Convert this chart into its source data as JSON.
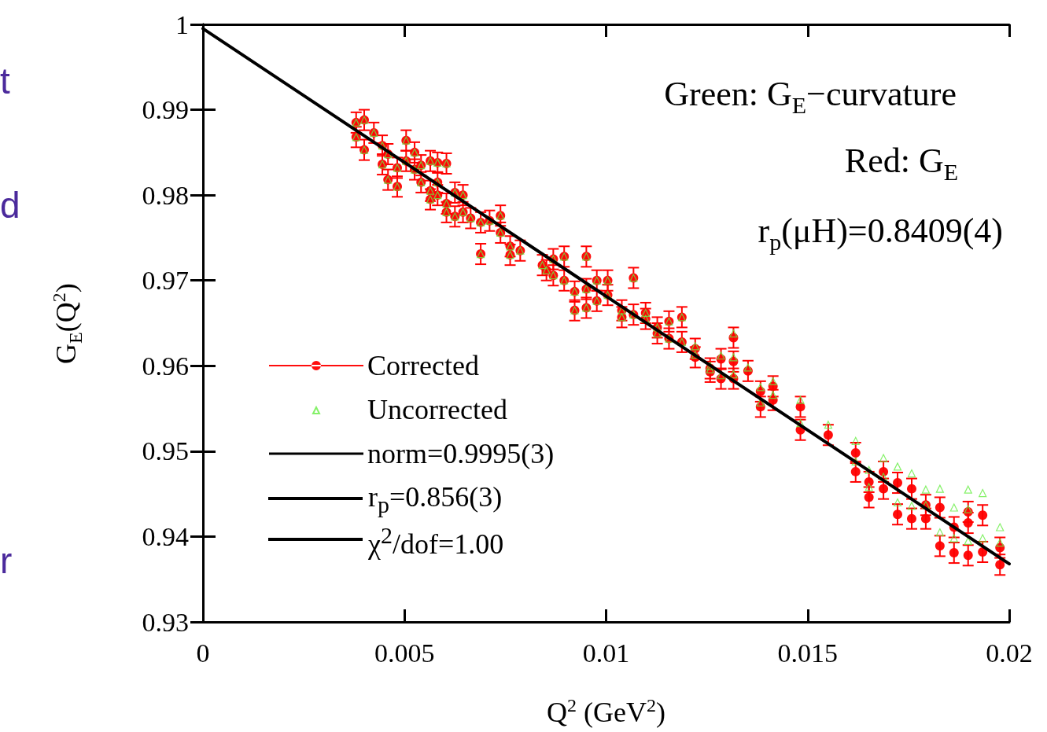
{
  "chart_data": {
    "type": "scatter",
    "xlabel": "Q$^{2}$ (GeV$^{2}$)",
    "ylabel": "G$_{E}$(Q$^{2}$)",
    "annotations": [
      "Green: G$_{E}$−curvature",
      "Red: G$_{E}$",
      "r$_{p}$(μH)=0.8409(4)",
      "t",
      "d",
      "r",
      "r$_{p}$=0.856(3)",
      "χ$^{2}$/dof=1.00"
    ],
    "xlim": [
      0,
      0.02
    ],
    "xticks": [
      0,
      0.005,
      0.01,
      0.015,
      0.02
    ],
    "ylim": [
      0.93,
      1
    ],
    "yticks": [
      0.93,
      0.94,
      0.95,
      0.96,
      0.97,
      0.98,
      0.99,
      1
    ],
    "grid": false,
    "legend": "bottom left",
    "x": [
      0.0038,
      0.0038,
      0.004,
      0.004,
      0.00424,
      0.00445,
      0.00445,
      0.00459,
      0.00459,
      0.00482,
      0.00482,
      0.00504,
      0.00504,
      0.00525,
      0.00525,
      0.00541,
      0.00541,
      0.00564,
      0.00564,
      0.00564,
      0.00582,
      0.00582,
      0.00582,
      0.00604,
      0.00604,
      0.00604,
      0.00625,
      0.00625,
      0.00645,
      0.00645,
      0.00664,
      0.00689,
      0.00689,
      0.00711,
      0.00738,
      0.00738,
      0.00762,
      0.00762,
      0.00787,
      0.00842,
      0.00852,
      0.00869,
      0.00869,
      0.00896,
      0.00896,
      0.00922,
      0.00922,
      0.00951,
      0.00951,
      0.00951,
      0.00977,
      0.00977,
      0.01004,
      0.01004,
      0.01039,
      0.01039,
      0.01068,
      0.01068,
      0.01098,
      0.01098,
      0.01127,
      0.01127,
      0.01156,
      0.01156,
      0.01188,
      0.01188,
      0.01221,
      0.01221,
      0.01258,
      0.01258,
      0.01285,
      0.01285,
      0.01316,
      0.01316,
      0.01316,
      0.01352,
      0.01383,
      0.01383,
      0.01414,
      0.01414,
      0.01482,
      0.01482,
      0.01551,
      0.01619,
      0.01619,
      0.01652,
      0.01652,
      0.01688,
      0.01688,
      0.01723,
      0.01723,
      0.01758,
      0.01758,
      0.01793,
      0.01793,
      0.01828,
      0.01828,
      0.01863,
      0.01863,
      0.01898,
      0.01898,
      0.01898,
      0.01934,
      0.01934,
      0.01977,
      0.01977
    ],
    "series": [
      {
        "name": "Corrected",
        "marker": "circle",
        "color": "#ff0000",
        "values": [
          0.9885,
          0.9868,
          0.9888,
          0.9853,
          0.9873,
          0.9858,
          0.9836,
          0.9818,
          0.9848,
          0.981,
          0.9832,
          0.9864,
          0.984,
          0.985,
          0.983,
          0.9835,
          0.9815,
          0.984,
          0.9795,
          0.9805,
          0.9838,
          0.9815,
          0.98,
          0.9837,
          0.978,
          0.979,
          0.9775,
          0.9803,
          0.98,
          0.978,
          0.9773,
          0.9731,
          0.9768,
          0.977,
          0.9776,
          0.9756,
          0.973,
          0.974,
          0.9735,
          0.9718,
          0.9712,
          0.9706,
          0.9725,
          0.97,
          0.9728,
          0.9665,
          0.9687,
          0.9728,
          0.969,
          0.9668,
          0.97,
          0.9676,
          0.97,
          0.9683,
          0.9657,
          0.9665,
          0.9703,
          0.966,
          0.9655,
          0.9662,
          0.9645,
          0.9638,
          0.9652,
          0.9632,
          0.9657,
          0.9628,
          0.961,
          0.962,
          0.9597,
          0.9593,
          0.9608,
          0.9585,
          0.9633,
          0.9605,
          0.9585,
          0.9594,
          0.957,
          0.9552,
          0.9576,
          0.956,
          0.9552,
          0.9525,
          0.9519,
          0.9498,
          0.9476,
          0.9464,
          0.9446,
          0.9476,
          0.9456,
          0.9463,
          0.9426,
          0.9456,
          0.9421,
          0.9437,
          0.9421,
          0.9434,
          0.9389,
          0.9411,
          0.9381,
          0.9429,
          0.9416,
          0.9378,
          0.9425,
          0.9382,
          0.9387,
          0.9367
        ],
        "errors": [
          0.0012,
          0.0012,
          0.0012,
          0.0012,
          0.0012,
          0.0012,
          0.0012,
          0.0012,
          0.0012,
          0.0012,
          0.0012,
          0.0012,
          0.0012,
          0.0012,
          0.0012,
          0.0012,
          0.0012,
          0.0012,
          0.0012,
          0.0012,
          0.0012,
          0.0012,
          0.0012,
          0.0012,
          0.0012,
          0.0012,
          0.0012,
          0.0012,
          0.0012,
          0.0012,
          0.0012,
          0.0012,
          0.0012,
          0.0012,
          0.0012,
          0.0012,
          0.0012,
          0.0012,
          0.0012,
          0.0012,
          0.0012,
          0.0012,
          0.0012,
          0.0012,
          0.0012,
          0.0012,
          0.0012,
          0.0012,
          0.0012,
          0.0012,
          0.0012,
          0.0012,
          0.0012,
          0.0012,
          0.0012,
          0.0012,
          0.0012,
          0.0012,
          0.0012,
          0.0012,
          0.0012,
          0.0012,
          0.0012,
          0.0012,
          0.0012,
          0.0012,
          0.0012,
          0.0012,
          0.0012,
          0.0012,
          0.0012,
          0.0012,
          0.0012,
          0.0012,
          0.0012,
          0.0012,
          0.0012,
          0.0012,
          0.0012,
          0.0012,
          0.0012,
          0.0012,
          0.0012,
          0.0012,
          0.0012,
          0.0012,
          0.0012,
          0.0012,
          0.0012,
          0.0012,
          0.0012,
          0.0012,
          0.0012,
          0.0012,
          0.0012,
          0.0012,
          0.0012,
          0.0012,
          0.0012,
          0.0012,
          0.0012,
          0.0012,
          0.0012,
          0.0012,
          0.0012,
          0.0012
        ]
      },
      {
        "name": "Uncorrected",
        "marker": "triangle",
        "color": "#66ee44",
        "values": [
          0.9885,
          0.9868,
          0.9888,
          0.9853,
          0.9873,
          0.9858,
          0.9836,
          0.9818,
          0.9848,
          0.981,
          0.9832,
          0.9864,
          0.984,
          0.985,
          0.983,
          0.9835,
          0.9815,
          0.984,
          0.9795,
          0.9805,
          0.9838,
          0.9815,
          0.98,
          0.9837,
          0.978,
          0.979,
          0.9775,
          0.9803,
          0.98,
          0.978,
          0.9773,
          0.9731,
          0.9768,
          0.977,
          0.9776,
          0.9756,
          0.973,
          0.974,
          0.9735,
          0.9718,
          0.9712,
          0.9706,
          0.9725,
          0.97,
          0.9728,
          0.9665,
          0.9687,
          0.9728,
          0.969,
          0.9668,
          0.97,
          0.9676,
          0.97,
          0.9683,
          0.9657,
          0.9665,
          0.9703,
          0.966,
          0.9655,
          0.9662,
          0.9645,
          0.9638,
          0.9652,
          0.9632,
          0.9657,
          0.9628,
          0.9613,
          0.9623,
          0.96,
          0.9596,
          0.9612,
          0.9589,
          0.9638,
          0.961,
          0.959,
          0.9598,
          0.9575,
          0.9557,
          0.9582,
          0.9566,
          0.956,
          0.9533,
          0.9531,
          0.9512,
          0.9488,
          0.9478,
          0.9458,
          0.9492,
          0.947,
          0.9482,
          0.944,
          0.9474,
          0.9436,
          0.9455,
          0.9437,
          0.9456,
          0.9405,
          0.9434,
          0.9398,
          0.9455,
          0.9432,
          0.9395,
          0.9451,
          0.9398,
          0.9411,
          0.9393
        ]
      },
      {
        "name": "norm=0.9995(3)",
        "type": "line",
        "marker": "none",
        "line_style": "solid",
        "color": "#000000",
        "x": [
          0,
          0.02
        ],
        "values": [
          0.9995,
          0.9368
        ]
      }
    ]
  }
}
